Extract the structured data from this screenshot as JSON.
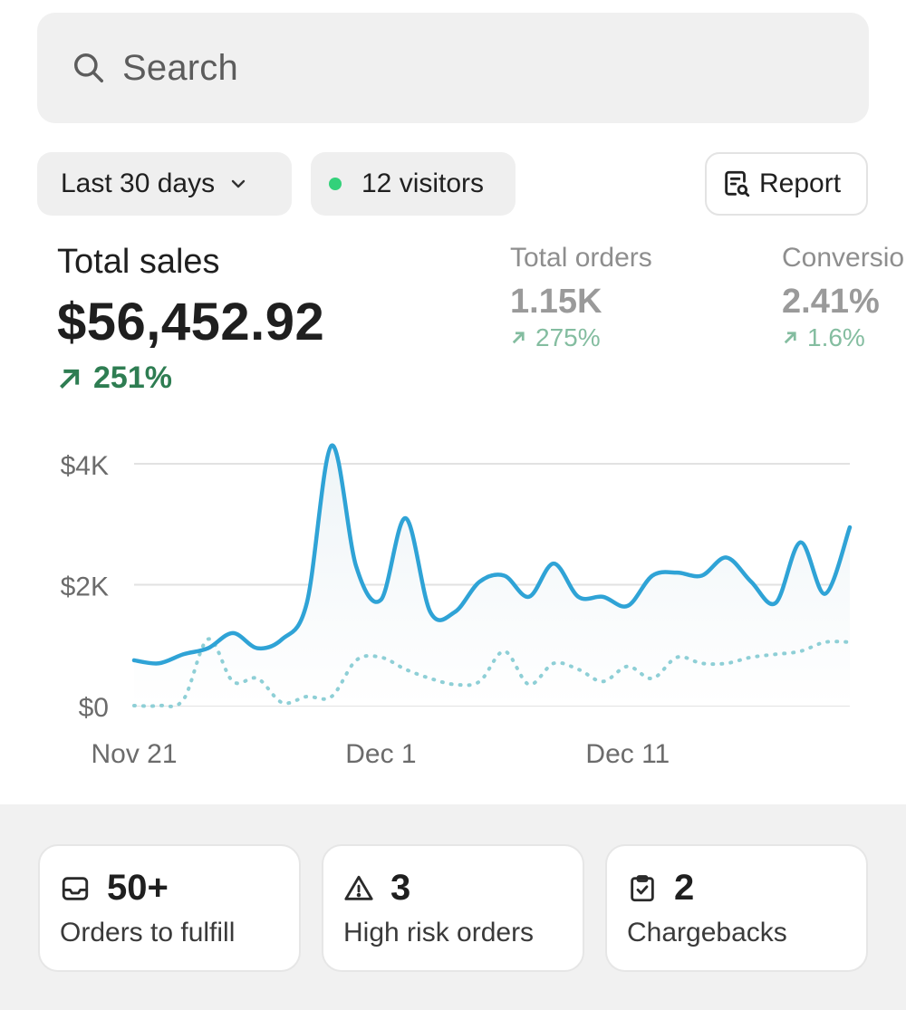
{
  "search": {
    "placeholder": "Search"
  },
  "filters": {
    "range_label": "Last 30 days",
    "visitors_label": "12 visitors",
    "report_label": "Report"
  },
  "total_sales": {
    "title": "Total sales",
    "value": "$56,452.92",
    "change": "251%"
  },
  "total_orders": {
    "title": "Total orders",
    "value": "1.15K",
    "change": "275%"
  },
  "conversion": {
    "title": "Conversio",
    "value": "2.41%",
    "change": "1.6%"
  },
  "colors": {
    "primary_line": "#2fa3d6",
    "comparison_line": "#8ecfd6",
    "positive": "#2e7d52",
    "live_dot": "#33d17a"
  },
  "chart_data": {
    "type": "line",
    "x_labels": [
      "Nov 21",
      "Dec 1",
      "Dec 11"
    ],
    "ylim": [
      0,
      4000
    ],
    "y_ticks": [
      {
        "label": "$4K",
        "value": 4000
      },
      {
        "label": "$2K",
        "value": 2000
      },
      {
        "label": "$0",
        "value": 0
      }
    ],
    "series": [
      {
        "style": "solid",
        "values": [
          750,
          700,
          850,
          950,
          1200,
          950,
          1100,
          1700,
          4300,
          2300,
          1750,
          3100,
          1550,
          1550,
          2050,
          2150,
          1800,
          2350,
          1800,
          1800,
          1650,
          2150,
          2200,
          2150,
          2450,
          2050,
          1700,
          2700,
          1850,
          2950
        ]
      },
      {
        "style": "dotted",
        "values": [
          0,
          0,
          100,
          1100,
          400,
          450,
          50,
          150,
          150,
          750,
          800,
          600,
          450,
          350,
          400,
          900,
          350,
          700,
          600,
          400,
          650,
          450,
          800,
          700,
          700,
          800,
          850,
          900,
          1050,
          1050
        ]
      }
    ]
  },
  "cards": [
    {
      "count": "50+",
      "label": "Orders to fulfill",
      "icon": "inbox-icon"
    },
    {
      "count": "3",
      "label": "High risk orders",
      "icon": "warning-icon"
    },
    {
      "count": "2",
      "label": "Chargebacks",
      "icon": "clipboard-check-icon"
    }
  ]
}
